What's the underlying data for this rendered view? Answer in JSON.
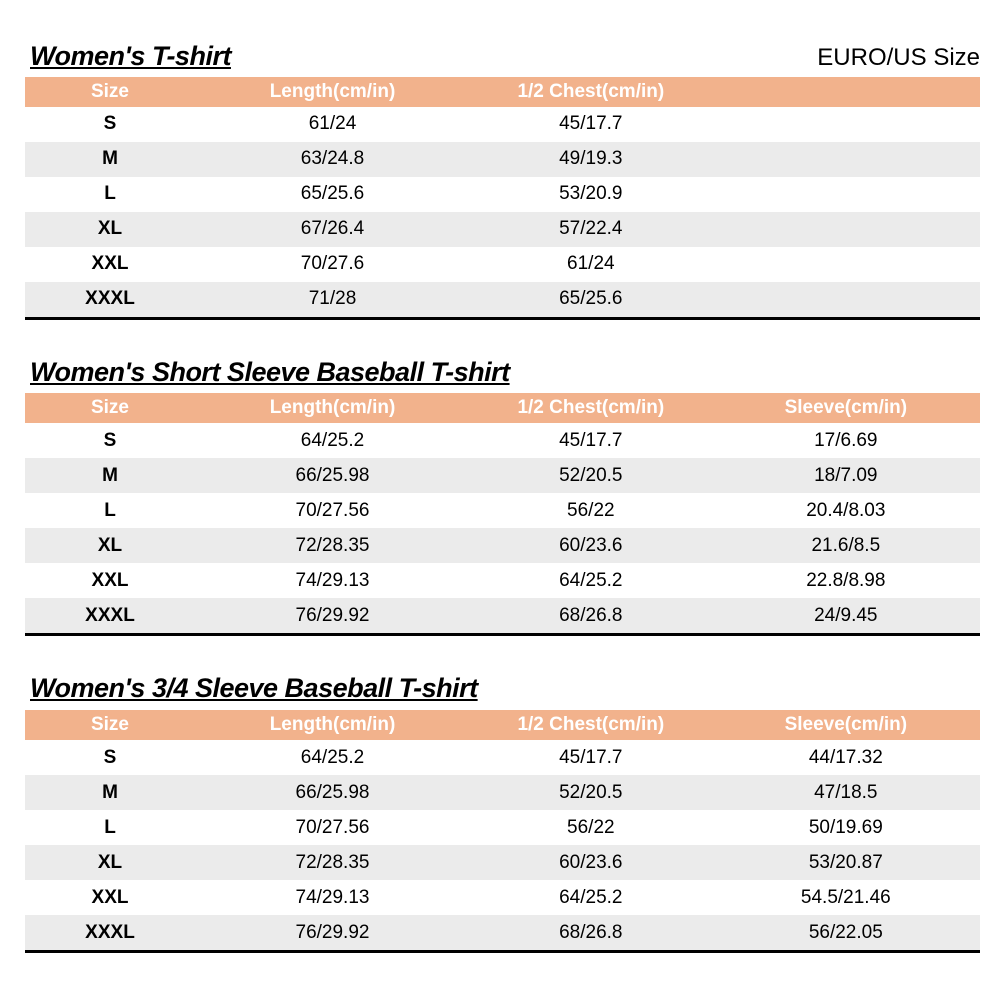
{
  "page": {
    "corner_label": "EURO/US Size"
  },
  "colors": {
    "header_bg": "#F2B28C",
    "header_text": "#FFFFFF",
    "row_bg": "#FFFFFF",
    "row_alt_bg": "#EBEBEB",
    "text": "#000000"
  },
  "tables": [
    {
      "title": "Women's T-shirt",
      "headers": [
        "Size",
        "Length(cm/in)",
        "1/2 Chest(cm/in)",
        ""
      ],
      "rows": [
        [
          "S",
          "61/24",
          "45/17.7",
          ""
        ],
        [
          "M",
          "63/24.8",
          "49/19.3",
          ""
        ],
        [
          "L",
          "65/25.6",
          "53/20.9",
          ""
        ],
        [
          "XL",
          "67/26.4",
          "57/22.4",
          ""
        ],
        [
          "XXL",
          "70/27.6",
          "61/24",
          ""
        ],
        [
          "XXXL",
          "71/28",
          "65/25.6",
          ""
        ]
      ]
    },
    {
      "title": "Women's Short Sleeve Baseball T-shirt",
      "headers": [
        "Size",
        "Length(cm/in)",
        "1/2 Chest(cm/in)",
        "Sleeve(cm/in)"
      ],
      "rows": [
        [
          "S",
          "64/25.2",
          "45/17.7",
          "17/6.69"
        ],
        [
          "M",
          "66/25.98",
          "52/20.5",
          "18/7.09"
        ],
        [
          "L",
          "70/27.56",
          "56/22",
          "20.4/8.03"
        ],
        [
          "XL",
          "72/28.35",
          "60/23.6",
          "21.6/8.5"
        ],
        [
          "XXL",
          "74/29.13",
          "64/25.2",
          "22.8/8.98"
        ],
        [
          "XXXL",
          "76/29.92",
          "68/26.8",
          "24/9.45"
        ]
      ]
    },
    {
      "title": "Women's 3/4 Sleeve Baseball T-shirt",
      "headers": [
        "Size",
        "Length(cm/in)",
        "1/2 Chest(cm/in)",
        "Sleeve(cm/in)"
      ],
      "rows": [
        [
          "S",
          "64/25.2",
          "45/17.7",
          "44/17.32"
        ],
        [
          "M",
          "66/25.98",
          "52/20.5",
          "47/18.5"
        ],
        [
          "L",
          "70/27.56",
          "56/22",
          "50/19.69"
        ],
        [
          "XL",
          "72/28.35",
          "60/23.6",
          "53/20.87"
        ],
        [
          "XXL",
          "74/29.13",
          "64/25.2",
          "54.5/21.46"
        ],
        [
          "XXXL",
          "76/29.92",
          "68/26.8",
          "56/22.05"
        ]
      ]
    }
  ]
}
